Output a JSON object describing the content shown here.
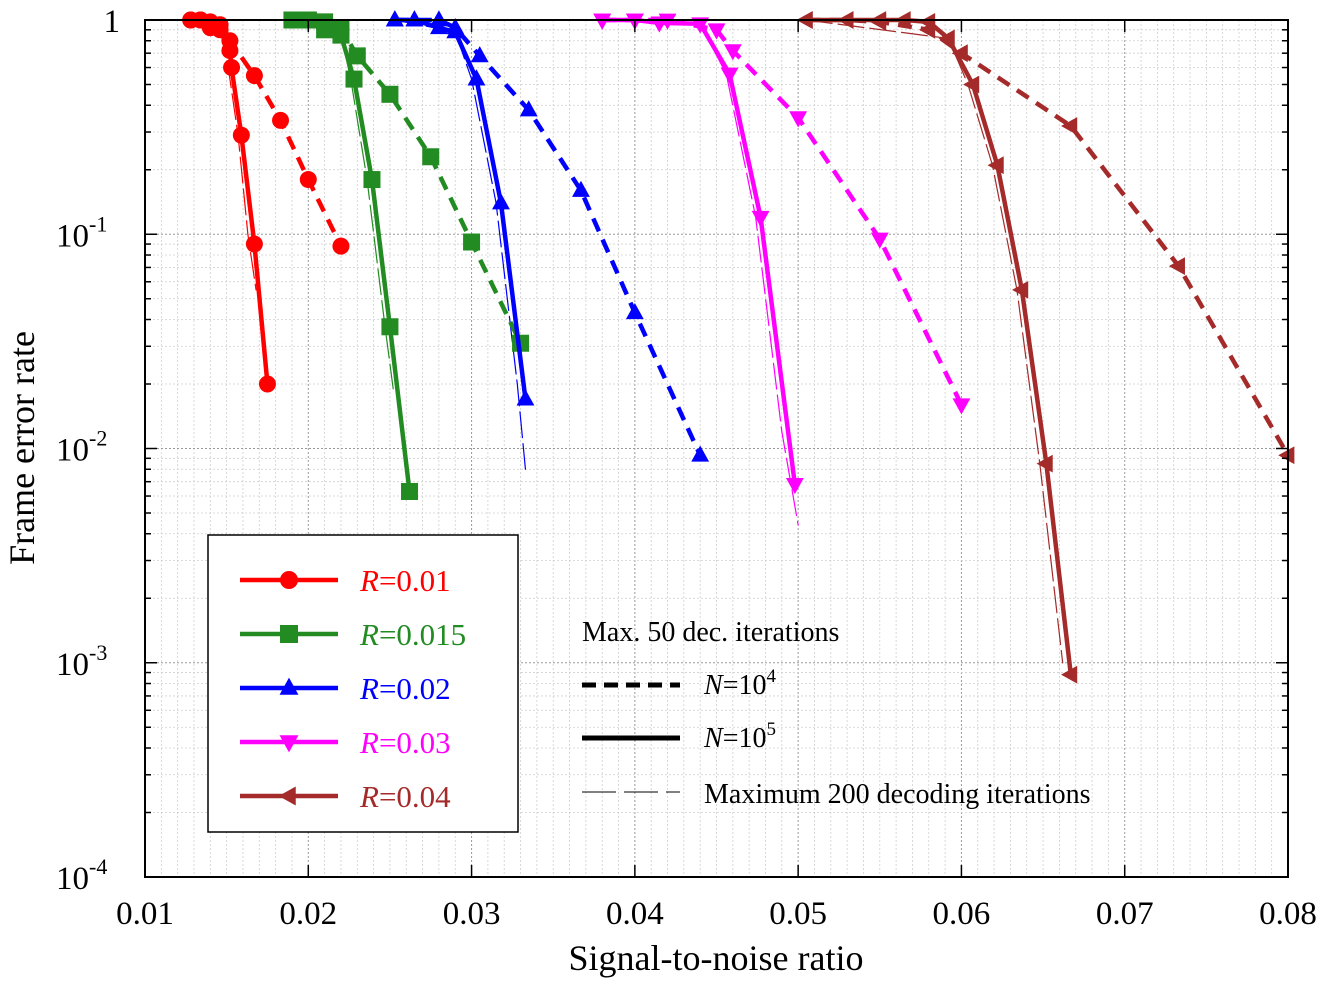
{
  "chart_data": {
    "type": "line",
    "title": "",
    "xlabel": "Signal-to-noise ratio",
    "ylabel": "Frame error rate",
    "xscale": "linear",
    "yscale": "log",
    "xlim": [
      0.01,
      0.08
    ],
    "ylim": [
      0.0001,
      1
    ],
    "grid": true,
    "x_ticks": [
      0.01,
      0.02,
      0.03,
      0.04,
      0.05,
      0.06,
      0.07,
      0.08
    ],
    "x_tick_labels": [
      "0.01",
      "0.02",
      "0.03",
      "0.04",
      "0.05",
      "0.06",
      "0.07",
      "0.08"
    ],
    "y_ticks": [
      {
        "value": 1,
        "base": "1",
        "exp": ""
      },
      {
        "value": 0.1,
        "base": "10",
        "exp": "-1"
      },
      {
        "value": 0.01,
        "base": "10",
        "exp": "-2"
      },
      {
        "value": 0.001,
        "base": "10",
        "exp": "-3"
      },
      {
        "value": 0.0001,
        "base": "10",
        "exp": "-4"
      }
    ],
    "legend": {
      "placement": "bottom-left",
      "entries": [
        {
          "prefix": "R",
          "label": "=0.01",
          "color": "#ff0000",
          "marker": "circle"
        },
        {
          "prefix": "R",
          "label": "=0.015",
          "color": "#228b22",
          "marker": "square"
        },
        {
          "prefix": "R",
          "label": "=0.02",
          "color": "#0000ff",
          "marker": "triangle-up"
        },
        {
          "prefix": "R",
          "label": "=0.03",
          "color": "#ff00ff",
          "marker": "triangle-down"
        },
        {
          "prefix": "R",
          "label": "=0.04",
          "color": "#a52a2a",
          "marker": "triangle-left"
        }
      ]
    },
    "style_legend": {
      "header": "Max. 50 dec. iterations",
      "dashed": {
        "prefix": "N",
        "label": "=10",
        "exp": "4"
      },
      "solid": {
        "prefix": "N",
        "label": "=10",
        "exp": "5"
      },
      "thin": {
        "label": "Maximum 200 decoding iterations"
      }
    },
    "series": [
      {
        "name": "R=0.01, N=1e4, 50 it",
        "rate": "0.01",
        "color": "#ff0000",
        "marker": "circle",
        "style": "dashed",
        "points": [
          [
            0.0128,
            1.0
          ],
          [
            0.0134,
            1.0
          ],
          [
            0.014,
            0.98
          ],
          [
            0.0146,
            0.95
          ],
          [
            0.0152,
            0.8
          ],
          [
            0.0167,
            0.55
          ],
          [
            0.0183,
            0.34
          ],
          [
            0.02,
            0.18
          ],
          [
            0.022,
            0.088
          ]
        ]
      },
      {
        "name": "R=0.01, N=1e5, 50 it",
        "rate": "0.01",
        "color": "#ff0000",
        "marker": "circle",
        "style": "solid",
        "points": [
          [
            0.0128,
            1.0
          ],
          [
            0.0134,
            1.0
          ],
          [
            0.014,
            0.92
          ],
          [
            0.0146,
            0.9
          ],
          [
            0.0152,
            0.72
          ],
          [
            0.0153,
            0.6
          ],
          [
            0.0159,
            0.29
          ],
          [
            0.0167,
            0.09
          ],
          [
            0.0175,
            0.02
          ]
        ]
      },
      {
        "name": "R=0.01, N=1e5, 200 it",
        "rate": "0.01",
        "color": "#ff0000",
        "marker": "none",
        "style": "thin",
        "points": [
          [
            0.0128,
            1.0
          ],
          [
            0.0146,
            0.9
          ],
          [
            0.0151,
            0.6
          ],
          [
            0.0157,
            0.29
          ],
          [
            0.0163,
            0.1
          ],
          [
            0.0168,
            0.055
          ]
        ]
      },
      {
        "name": "R=0.015, N=1e4, 50 it",
        "rate": "0.015",
        "color": "#228b22",
        "marker": "square",
        "style": "dashed",
        "points": [
          [
            0.019,
            1.0
          ],
          [
            0.02,
            1.0
          ],
          [
            0.021,
            0.98
          ],
          [
            0.022,
            0.92
          ],
          [
            0.023,
            0.68
          ],
          [
            0.025,
            0.45
          ],
          [
            0.0275,
            0.23
          ],
          [
            0.03,
            0.092
          ],
          [
            0.033,
            0.031
          ]
        ]
      },
      {
        "name": "R=0.015, N=1e5, 50 it",
        "rate": "0.015",
        "color": "#228b22",
        "marker": "square",
        "style": "solid",
        "points": [
          [
            0.019,
            1.0
          ],
          [
            0.02,
            1.0
          ],
          [
            0.021,
            0.9
          ],
          [
            0.022,
            0.85
          ],
          [
            0.0228,
            0.53
          ],
          [
            0.0239,
            0.18
          ],
          [
            0.025,
            0.037
          ],
          [
            0.0262,
            0.0063
          ]
        ]
      },
      {
        "name": "R=0.015, N=1e5, 200 it",
        "rate": "0.015",
        "color": "#228b22",
        "marker": "none",
        "style": "thin",
        "points": [
          [
            0.019,
            1.0
          ],
          [
            0.022,
            0.85
          ],
          [
            0.0226,
            0.53
          ],
          [
            0.0236,
            0.18
          ],
          [
            0.0247,
            0.037
          ],
          [
            0.0252,
            0.019
          ]
        ]
      },
      {
        "name": "R=0.02, N=1e4, 50 it",
        "rate": "0.02",
        "color": "#0000ff",
        "marker": "triangle-up",
        "style": "dashed",
        "points": [
          [
            0.0253,
            1.0
          ],
          [
            0.0265,
            1.0
          ],
          [
            0.028,
            1.0
          ],
          [
            0.029,
            0.92
          ],
          [
            0.0305,
            0.68
          ],
          [
            0.0335,
            0.38
          ],
          [
            0.0367,
            0.16
          ],
          [
            0.04,
            0.043
          ],
          [
            0.044,
            0.0093
          ]
        ]
      },
      {
        "name": "R=0.02, N=1e5, 50 it",
        "rate": "0.02",
        "color": "#0000ff",
        "marker": "triangle-up",
        "style": "solid",
        "points": [
          [
            0.0253,
            1.0
          ],
          [
            0.0265,
            1.0
          ],
          [
            0.028,
            0.92
          ],
          [
            0.029,
            0.88
          ],
          [
            0.0303,
            0.53
          ],
          [
            0.0318,
            0.14
          ],
          [
            0.0333,
            0.017
          ]
        ]
      },
      {
        "name": "R=0.02, N=1e5, 200 it",
        "rate": "0.02",
        "color": "#0000ff",
        "marker": "none",
        "style": "thin",
        "points": [
          [
            0.0253,
            1.0
          ],
          [
            0.029,
            0.88
          ],
          [
            0.03,
            0.53
          ],
          [
            0.0315,
            0.14
          ],
          [
            0.0328,
            0.02
          ],
          [
            0.0333,
            0.008
          ]
        ]
      },
      {
        "name": "R=0.03, N=1e4, 50 it",
        "rate": "0.03",
        "color": "#ff00ff",
        "marker": "triangle-down",
        "style": "dashed",
        "points": [
          [
            0.038,
            1.0
          ],
          [
            0.04,
            1.0
          ],
          [
            0.042,
            1.0
          ],
          [
            0.045,
            0.9
          ],
          [
            0.046,
            0.72
          ],
          [
            0.05,
            0.35
          ],
          [
            0.055,
            0.095
          ],
          [
            0.06,
            0.016
          ]
        ]
      },
      {
        "name": "R=0.03, N=1e5, 50 it",
        "rate": "0.03",
        "color": "#ff00ff",
        "marker": "triangle-down",
        "style": "solid",
        "points": [
          [
            0.038,
            1.0
          ],
          [
            0.04,
            1.0
          ],
          [
            0.0415,
            0.97
          ],
          [
            0.044,
            0.96
          ],
          [
            0.0458,
            0.56
          ],
          [
            0.0477,
            0.12
          ],
          [
            0.0498,
            0.0068
          ]
        ]
      },
      {
        "name": "R=0.03, N=1e5, 200 it",
        "rate": "0.03",
        "color": "#ff00ff",
        "marker": "none",
        "style": "thin",
        "points": [
          [
            0.038,
            1.0
          ],
          [
            0.044,
            0.96
          ],
          [
            0.0456,
            0.56
          ],
          [
            0.0474,
            0.12
          ],
          [
            0.049,
            0.012
          ],
          [
            0.05,
            0.0044
          ]
        ]
      },
      {
        "name": "R=0.04, N=1e4, 50 it",
        "rate": "0.04",
        "color": "#a52a2a",
        "marker": "triangle-left",
        "style": "dashed",
        "points": [
          [
            0.0505,
            1.0
          ],
          [
            0.053,
            1.0
          ],
          [
            0.055,
            0.98
          ],
          [
            0.058,
            0.9
          ],
          [
            0.06,
            0.7
          ],
          [
            0.0667,
            0.32
          ],
          [
            0.0733,
            0.071
          ],
          [
            0.08,
            0.0093
          ]
        ]
      },
      {
        "name": "R=0.04, N=1e5, 50 it",
        "rate": "0.04",
        "color": "#a52a2a",
        "marker": "triangle-left",
        "style": "solid",
        "points": [
          [
            0.0505,
            1.0
          ],
          [
            0.053,
            1.0
          ],
          [
            0.055,
            1.0
          ],
          [
            0.0565,
            1.0
          ],
          [
            0.058,
            0.98
          ],
          [
            0.0592,
            0.82
          ],
          [
            0.0607,
            0.5
          ],
          [
            0.0622,
            0.21
          ],
          [
            0.0637,
            0.055
          ],
          [
            0.0652,
            0.0085
          ],
          [
            0.0667,
            0.00088
          ]
        ]
      },
      {
        "name": "R=0.04, N=1e5, 200 it",
        "rate": "0.04",
        "color": "#a52a2a",
        "marker": "none",
        "style": "thin",
        "points": [
          [
            0.0505,
            1.0
          ],
          [
            0.0592,
            0.82
          ],
          [
            0.0604,
            0.5
          ],
          [
            0.0619,
            0.21
          ],
          [
            0.0634,
            0.055
          ],
          [
            0.0648,
            0.0085
          ],
          [
            0.0662,
            0.001
          ]
        ]
      }
    ]
  }
}
